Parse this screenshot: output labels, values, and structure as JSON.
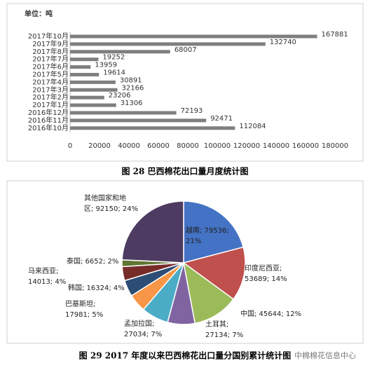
{
  "chart_data": [
    {
      "type": "bar",
      "orientation": "horizontal",
      "title": "单位：吨",
      "caption": "图 28  巴西棉花出口量月度统计图",
      "categories": [
        "2017年10月",
        "2017年9月",
        "2017年8月",
        "2017年7月",
        "2017年6月",
        "2017年5月",
        "2017年4月",
        "2017年3月",
        "2017年2月",
        "2017年1月",
        "2016年12月",
        "2016年11月",
        "2016年10月"
      ],
      "values": [
        167881,
        132740,
        68007,
        19252,
        13959,
        19614,
        30891,
        32166,
        23206,
        31306,
        72193,
        92471,
        112084
      ],
      "color": "#7f7f7f",
      "xlim": [
        0,
        180000
      ],
      "xticks": [
        0,
        20000,
        40000,
        60000,
        80000,
        100000,
        120000,
        140000,
        160000,
        180000
      ]
    },
    {
      "type": "pie",
      "caption": "图 29 2017 年度以来巴西棉花出口量分国别累计统计图",
      "watermark": "中棉棉花信息中心",
      "values": [
        79536,
        53689,
        45644,
        27134,
        27034,
        17981,
        16324,
        14013,
        6652,
        92150
      ],
      "labels": [
        "越南; 79536;\n21%",
        "印度尼西亚;\n53689; 14%",
        "中国; 45644; 12%",
        "土耳其;\n27134; 7%",
        "孟加拉国;\n27034; 7%",
        "巴基斯坦;\n17981; 5%",
        "韩国; 16324; 4%",
        "马来西亚;\n14013; 4%",
        "泰国; 6652; 2%",
        "其他国家和地\n区; 92150; 24%"
      ],
      "colors": [
        "#4472c4",
        "#c0504d",
        "#9bbb59",
        "#8064a2",
        "#4bacc6",
        "#f79646",
        "#2c4d75",
        "#772c2a",
        "#5f7530",
        "#4d3b62"
      ]
    }
  ]
}
